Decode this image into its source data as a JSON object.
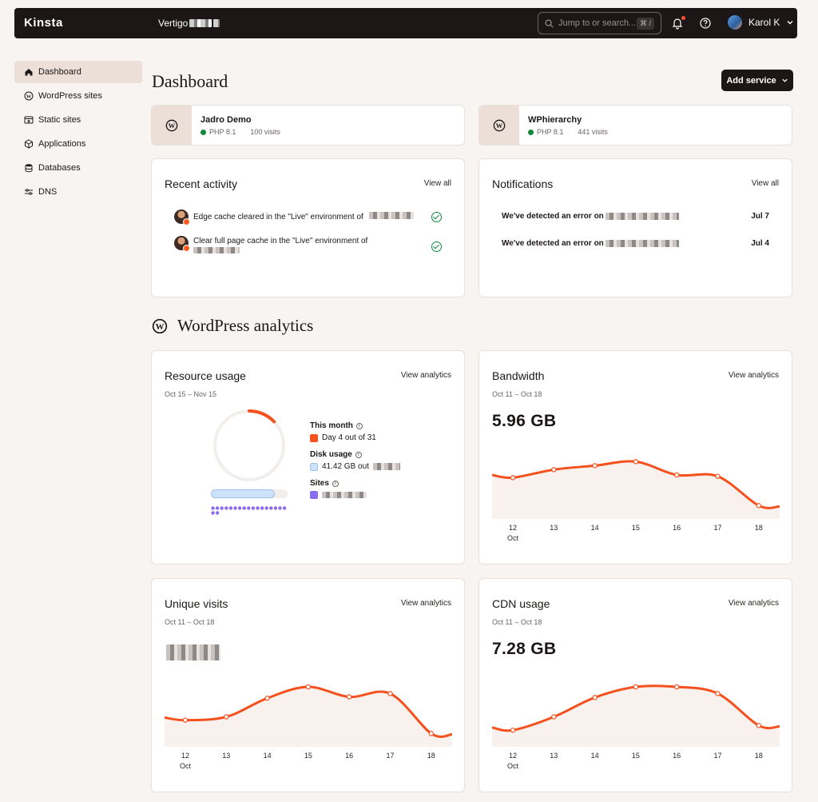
{
  "topbar": {
    "logo": "Kinsta",
    "company": "Vertigo",
    "search_placeholder": "Jump to or search...",
    "search_shortcut": "⌘ /",
    "user_name": "Karol K"
  },
  "sidebar": {
    "items": [
      {
        "label": "Dashboard",
        "icon": "home-icon"
      },
      {
        "label": "WordPress sites",
        "icon": "wordpress-icon"
      },
      {
        "label": "Static sites",
        "icon": "static-sites-icon"
      },
      {
        "label": "Applications",
        "icon": "applications-icon"
      },
      {
        "label": "Databases",
        "icon": "database-icon"
      },
      {
        "label": "DNS",
        "icon": "dns-icon"
      }
    ]
  },
  "header": {
    "title": "Dashboard",
    "add_service": "Add service"
  },
  "sites": [
    {
      "name": "Jadro Demo",
      "php": "PHP 8.1",
      "visits": "100 visits"
    },
    {
      "name": "WPhierarchy",
      "php": "PHP 8.1",
      "visits": "441 visits"
    }
  ],
  "recent_activity": {
    "title": "Recent activity",
    "link": "View all",
    "items": [
      {
        "text": "Edge cache cleared in the \"Live\" environment of"
      },
      {
        "text": "Clear full page cache in the \"Live\" environment of"
      }
    ]
  },
  "notifications": {
    "title": "Notifications",
    "link": "View all",
    "items": [
      {
        "text": "We've detected an error on",
        "date": "Jul 7"
      },
      {
        "text": "We've detected an error on",
        "date": "Jul 4"
      }
    ]
  },
  "analytics": {
    "title": "WordPress analytics",
    "resource": {
      "title": "Resource usage",
      "link": "View analytics",
      "range": "Oct 15 – Nov 15",
      "this_month_label": "This month",
      "this_month_value": "Day 4 out of 31",
      "month_progress": 0.129,
      "disk_label": "Disk usage",
      "disk_value": "41.42 GB out",
      "sites_label": "Sites",
      "colors": {
        "month": "#f4511e",
        "disk": "#cfe2fb",
        "sites": "#8a6cf0"
      }
    },
    "bandwidth": {
      "title": "Bandwidth",
      "link": "View analytics",
      "range": "Oct 11 – Oct 18",
      "value": "5.96 GB"
    },
    "visits": {
      "title": "Unique visits",
      "link": "View analytics",
      "range": "Oct 11 – Oct 18"
    },
    "cdn": {
      "title": "CDN usage",
      "link": "View analytics",
      "range": "Oct 11 – Oct 18",
      "value": "7.28 GB"
    },
    "x_labels": [
      "12",
      "13",
      "14",
      "15",
      "16",
      "17",
      "18"
    ],
    "x_first_sub": "Oct"
  },
  "chart_data": [
    {
      "type": "area",
      "title": "Bandwidth",
      "categories": [
        "12",
        "13",
        "14",
        "15",
        "16",
        "17",
        "18"
      ],
      "values": [
        0.62,
        0.74,
        0.8,
        0.86,
        0.66,
        0.64,
        0.2
      ],
      "ylim": [
        0,
        1.2
      ],
      "color": "#f4511e"
    },
    {
      "type": "area",
      "title": "Unique visits",
      "categories": [
        "12",
        "13",
        "14",
        "15",
        "16",
        "17",
        "18"
      ],
      "values": [
        0.4,
        0.45,
        0.73,
        0.9,
        0.75,
        0.8,
        0.2
      ],
      "ylim": [
        0,
        1.2
      ],
      "color": "#f4511e"
    },
    {
      "type": "area",
      "title": "CDN usage",
      "categories": [
        "12",
        "13",
        "14",
        "15",
        "16",
        "17",
        "18"
      ],
      "values": [
        0.25,
        0.45,
        0.74,
        0.9,
        0.9,
        0.8,
        0.32
      ],
      "ylim": [
        0,
        1.2
      ],
      "color": "#f4511e"
    }
  ]
}
